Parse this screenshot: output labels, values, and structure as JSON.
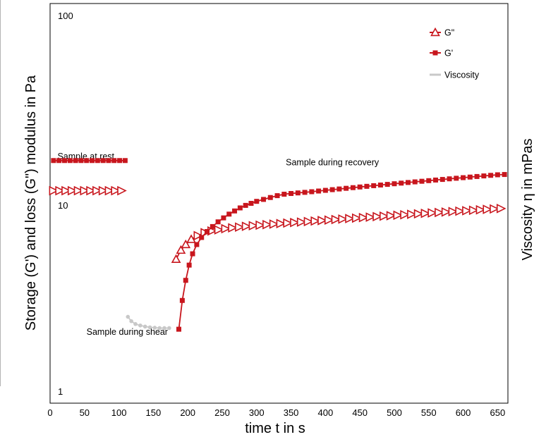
{
  "chart_data": {
    "type": "line",
    "title": "",
    "xlabel": "time t in s",
    "ylabel_left": "Storage (G') and loss (G\") modulus in Pa",
    "ylabel_right": "Viscosity η in mPas",
    "x_scale": "linear",
    "y_scale": "log",
    "xlim": [
      0,
      665
    ],
    "ylim": [
      1,
      100
    ],
    "x_ticks": [
      0,
      50,
      100,
      150,
      200,
      250,
      300,
      350,
      400,
      450,
      500,
      550,
      600,
      650
    ],
    "y_ticks": [
      1,
      10,
      100
    ],
    "grid": false,
    "legend_position": "top-right",
    "colors": {
      "moduli": "#c8161d",
      "viscosity": "#c8c8c8"
    },
    "annotations": [
      {
        "text": "Sample at rest",
        "x": 52,
        "y": 17.3
      },
      {
        "text": "Sample during recovery",
        "x": 410,
        "y": 16.0
      },
      {
        "text": "Sample during shear",
        "x": 112,
        "y": 1.96
      }
    ],
    "series": [
      {
        "name": "G\"",
        "marker": "triangle-open",
        "segments": [
          {
            "x": [
              5,
              14,
              23,
              32,
              41,
              50,
              59,
              68,
              77,
              86,
              95,
              104
            ],
            "y": [
              11.7,
              11.7,
              11.7,
              11.7,
              11.7,
              11.7,
              11.7,
              11.7,
              11.7,
              11.7,
              11.7,
              11.7
            ]
          },
          {
            "x": [
              183,
              190,
              197,
              205,
              215,
              225,
              235,
              245,
              255,
              265,
              275,
              285,
              295,
              305,
              315,
              325,
              335,
              345,
              355,
              365,
              375,
              385,
              395,
              405,
              415,
              425,
              435,
              445,
              455,
              465,
              475,
              485,
              495,
              505,
              515,
              525,
              535,
              545,
              555,
              565,
              575,
              585,
              595,
              605,
              615,
              625,
              635,
              645,
              655
            ],
            "y": [
              5.0,
              5.6,
              6.0,
              6.4,
              6.7,
              6.95,
              7.1,
              7.2,
              7.3,
              7.38,
              7.45,
              7.52,
              7.58,
              7.63,
              7.68,
              7.73,
              7.78,
              7.83,
              7.88,
              7.93,
              7.98,
              8.03,
              8.08,
              8.13,
              8.18,
              8.23,
              8.28,
              8.33,
              8.38,
              8.43,
              8.48,
              8.53,
              8.58,
              8.63,
              8.68,
              8.73,
              8.78,
              8.83,
              8.88,
              8.93,
              8.98,
              9.03,
              9.08,
              9.13,
              9.18,
              9.23,
              9.28,
              9.33,
              9.38
            ]
          }
        ]
      },
      {
        "name": "G'",
        "marker": "square-filled",
        "segments": [
          {
            "x": [
              5,
              13,
              21,
              29,
              37,
              45,
              53,
              61,
              69,
              77,
              85,
              93,
              101,
              109
            ],
            "y": [
              17.0,
              17.0,
              17.0,
              17.0,
              17.0,
              17.0,
              17.0,
              17.0,
              17.0,
              17.0,
              17.0,
              17.0,
              17.0,
              17.0
            ]
          },
          {
            "x": [
              187,
              192,
              197,
              202,
              207,
              213,
              220,
              228,
              236,
              244,
              252,
              260,
              268,
              276,
              284,
              292,
              300,
              310,
              320,
              330,
              340,
              350,
              360,
              370,
              380,
              390,
              400,
              410,
              420,
              430,
              440,
              450,
              460,
              470,
              480,
              490,
              500,
              510,
              520,
              530,
              540,
              550,
              560,
              570,
              580,
              590,
              600,
              610,
              620,
              630,
              640,
              650,
              660
            ],
            "y": [
              2.1,
              3.0,
              3.85,
              4.65,
              5.35,
              6.0,
              6.55,
              7.05,
              7.5,
              7.95,
              8.35,
              8.75,
              9.1,
              9.45,
              9.75,
              10.0,
              10.25,
              10.5,
              10.75,
              11.0,
              11.2,
              11.3,
              11.38,
              11.46,
              11.55,
              11.65,
              11.75,
              11.85,
              11.95,
              12.05,
              12.15,
              12.25,
              12.35,
              12.45,
              12.55,
              12.65,
              12.75,
              12.85,
              12.95,
              13.05,
              13.15,
              13.25,
              13.35,
              13.45,
              13.55,
              13.65,
              13.75,
              13.85,
              13.95,
              14.05,
              14.15,
              14.25,
              14.3
            ]
          }
        ]
      },
      {
        "name": "Viscosity",
        "marker": "circle-filled",
        "segments": [
          {
            "x": [
              113,
              118,
              124,
              131,
              138,
              145,
              152,
              159,
              166,
              173
            ],
            "y": [
              2.45,
              2.32,
              2.24,
              2.2,
              2.17,
              2.15,
              2.14,
              2.13,
              2.13,
              2.13
            ]
          }
        ]
      }
    ]
  }
}
